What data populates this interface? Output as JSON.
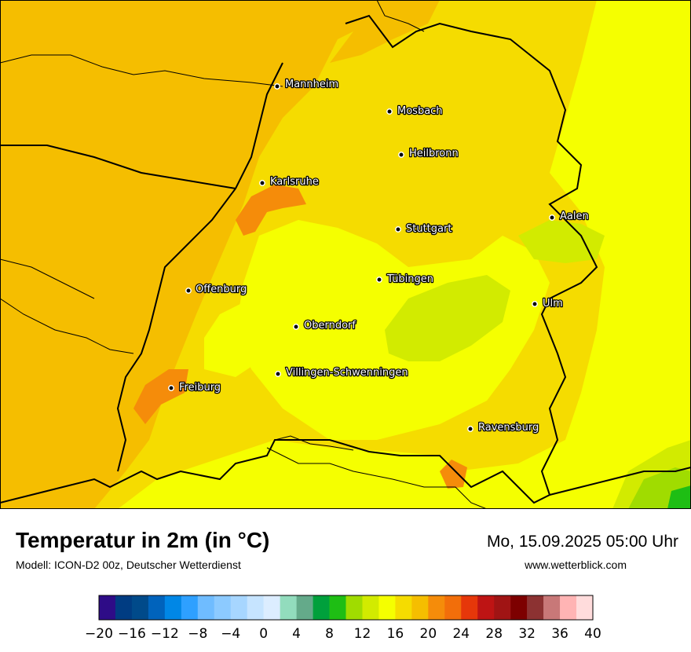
{
  "title": "Temperatur in 2m (in °C)",
  "subtitle": "Modell: ICON-D2 00z, Deutscher Wetterdienst",
  "datetime": "Mo, 15.09.2025 05:00 Uhr",
  "website": "www.wetterblick.com",
  "cities": [
    {
      "name": "Mannheim",
      "key": "mannheim"
    },
    {
      "name": "Mosbach",
      "key": "mosbach"
    },
    {
      "name": "Heilbronn",
      "key": "heilbronn"
    },
    {
      "name": "Karlsruhe",
      "key": "karlsruhe"
    },
    {
      "name": "Aalen",
      "key": "aalen"
    },
    {
      "name": "Stuttgart",
      "key": "stuttgart"
    },
    {
      "name": "Tübingen",
      "key": "tuebingen"
    },
    {
      "name": "Offenburg",
      "key": "offenburg"
    },
    {
      "name": "Ulm",
      "key": "ulm"
    },
    {
      "name": "Oberndorf",
      "key": "oberndorf"
    },
    {
      "name": "Villingen-Schwenningen",
      "key": "villingen-schwenningen"
    },
    {
      "name": "Freiburg",
      "key": "freiburg"
    },
    {
      "name": "Ravensburg",
      "key": "ravensburg"
    }
  ],
  "legend": {
    "min": -20,
    "max": 40,
    "step": 2,
    "colors": [
      "#2e0c87",
      "#003c82",
      "#004a8a",
      "#0063bc",
      "#0087e6",
      "#2ea0ff",
      "#6fbcff",
      "#8ccaff",
      "#a7d6ff",
      "#c6e4ff",
      "#dcedff",
      "#92dcbd",
      "#64aa8a",
      "#00a03c",
      "#1ebe14",
      "#a0dc00",
      "#d2eb00",
      "#f5ff00",
      "#f5dc00",
      "#f5be00",
      "#f58c0a",
      "#f26e0a",
      "#e6370a",
      "#be1414",
      "#a01414",
      "#7d0000",
      "#8c3232",
      "#c87878",
      "#ffb4b4",
      "#ffdcdc"
    ],
    "tick_labels": [
      "−20",
      "−16",
      "−12",
      "−8",
      "−4",
      "0",
      "4",
      "8",
      "12",
      "16",
      "20",
      "24",
      "28",
      "32",
      "36",
      "40"
    ]
  }
}
